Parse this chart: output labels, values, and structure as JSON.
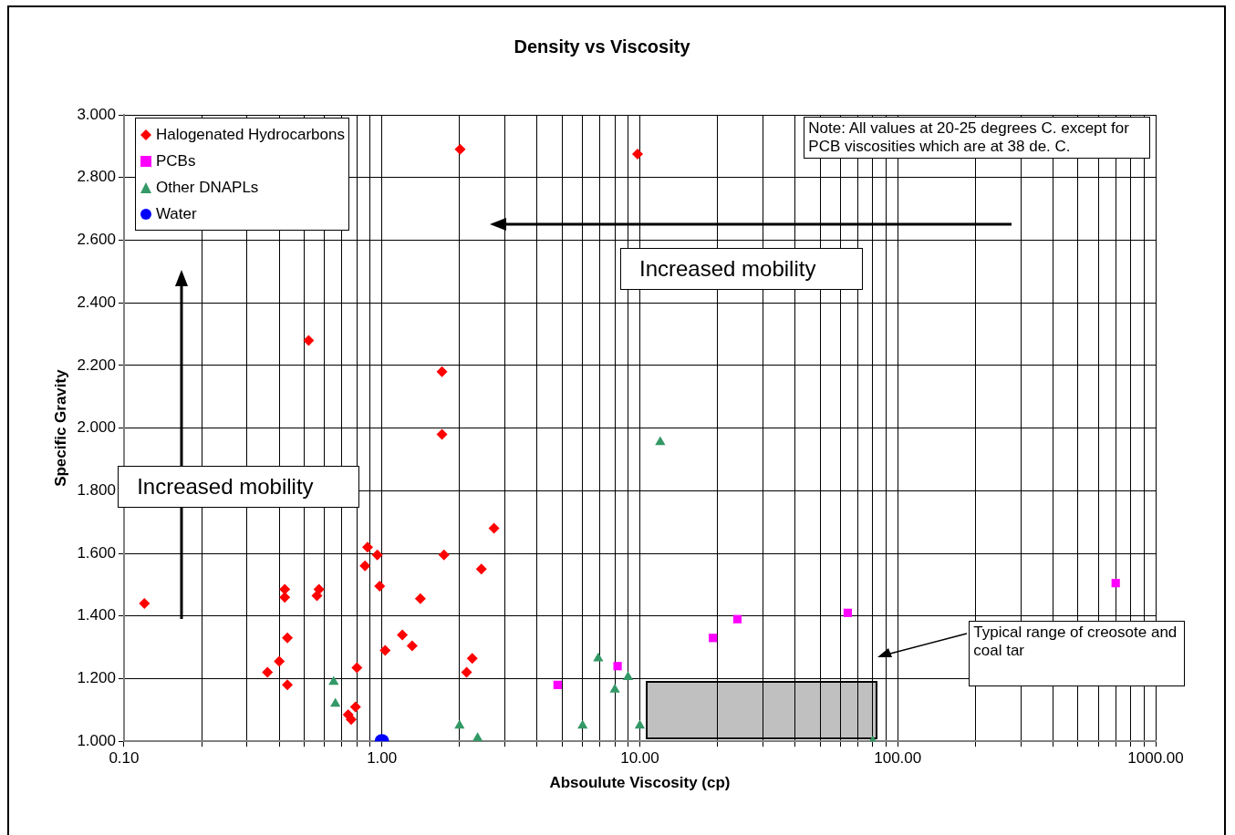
{
  "chart_data": {
    "type": "scatter",
    "title": "Density vs Viscosity",
    "xlabel": "Absoulute Viscosity (cp)",
    "ylabel": "Specific Gravity",
    "log": "x",
    "grid": true,
    "legend": "top left",
    "xlim": [
      0.1,
      1000
    ],
    "ylim": [
      1,
      3
    ],
    "xticks": [
      {
        "value": 0.1,
        "label": "0.10"
      },
      {
        "value": 0.2,
        "label": null
      },
      {
        "value": 0.3,
        "label": null
      },
      {
        "value": 0.4,
        "label": null
      },
      {
        "value": 0.5,
        "label": null
      },
      {
        "value": 0.6,
        "label": null
      },
      {
        "value": 0.7,
        "label": null
      },
      {
        "value": 0.8,
        "label": null
      },
      {
        "value": 0.9,
        "label": null
      },
      {
        "value": 1,
        "label": "1.00"
      },
      {
        "value": 2,
        "label": null
      },
      {
        "value": 3,
        "label": null
      },
      {
        "value": 4,
        "label": null
      },
      {
        "value": 5,
        "label": null
      },
      {
        "value": 6,
        "label": null
      },
      {
        "value": 7,
        "label": null
      },
      {
        "value": 8,
        "label": null
      },
      {
        "value": 9,
        "label": null
      },
      {
        "value": 10,
        "label": "10.00"
      },
      {
        "value": 20,
        "label": null
      },
      {
        "value": 30,
        "label": null
      },
      {
        "value": 40,
        "label": null
      },
      {
        "value": 50,
        "label": null
      },
      {
        "value": 60,
        "label": null
      },
      {
        "value": 70,
        "label": null
      },
      {
        "value": 80,
        "label": null
      },
      {
        "value": 90,
        "label": null
      },
      {
        "value": 100,
        "label": "100.00"
      },
      {
        "value": 200,
        "label": null
      },
      {
        "value": 300,
        "label": null
      },
      {
        "value": 400,
        "label": null
      },
      {
        "value": 500,
        "label": null
      },
      {
        "value": 600,
        "label": null
      },
      {
        "value": 700,
        "label": null
      },
      {
        "value": 800,
        "label": null
      },
      {
        "value": 900,
        "label": null
      },
      {
        "value": 1000,
        "label": "1000.00"
      }
    ],
    "yticks": [
      {
        "value": 1,
        "label": "1.000"
      },
      {
        "value": 1.2,
        "label": "1.200"
      },
      {
        "value": 1.4,
        "label": "1.400"
      },
      {
        "value": 1.6,
        "label": "1.600"
      },
      {
        "value": 1.8,
        "label": "1.800"
      },
      {
        "value": 2,
        "label": "2.000"
      },
      {
        "value": 2.2,
        "label": "2.200"
      },
      {
        "value": 2.4,
        "label": "2.400"
      },
      {
        "value": 2.6,
        "label": "2.600"
      },
      {
        "value": 2.8,
        "label": "2.800"
      },
      {
        "value": 3,
        "label": "3.000"
      }
    ],
    "series": [
      {
        "name": "Halogenated Hydrocarbons",
        "color": "#ff0000",
        "marker": "diamond",
        "x": [
          0.12,
          0.52,
          2.01,
          9.8,
          1.71,
          1.71,
          2.72,
          0.88,
          0.96,
          1.74,
          0.86,
          2.43,
          0.98,
          1.41,
          0.42,
          0.42,
          0.57,
          0.56,
          0.43,
          1.2,
          1.31,
          1.03,
          0.4,
          0.36,
          0.8,
          2.24,
          2.13,
          0.43,
          0.79,
          0.74,
          0.76
        ],
        "values": [
          1.44,
          2.28,
          2.89,
          2.875,
          2.18,
          1.98,
          1.68,
          1.62,
          1.595,
          1.595,
          1.56,
          1.55,
          1.495,
          1.455,
          1.485,
          1.46,
          1.485,
          1.465,
          1.33,
          1.34,
          1.305,
          1.29,
          1.255,
          1.22,
          1.235,
          1.265,
          1.22,
          1.18,
          1.11,
          1.085,
          1.07
        ]
      },
      {
        "name": "PCBs",
        "color": "#ff00ff",
        "marker": "square",
        "x": [
          4.8,
          8.2,
          19.2,
          23.9,
          64,
          700
        ],
        "values": [
          1.18,
          1.24,
          1.33,
          1.39,
          1.41,
          1.505
        ]
      },
      {
        "name": "Other DNAPLs",
        "color": "#339966",
        "marker": "triangle",
        "x": [
          0.65,
          0.66,
          12,
          6.9,
          8,
          9,
          6,
          2,
          2.35,
          10,
          80
        ],
        "values": [
          1.19,
          1.12,
          1.955,
          1.265,
          1.165,
          1.205,
          1.05,
          1.05,
          1.01,
          1.05,
          1.0
        ]
      },
      {
        "name": "Water",
        "color": "#0000ff",
        "marker": "circle",
        "x": [
          1
        ],
        "values": [
          1
        ]
      }
    ],
    "annotations": [
      "Note:  All values at 20-25 degrees C. except for PCB viscosities which are at 38 de. C.",
      "Increased mobility",
      "Increased mobility",
      "Typical range of creosote and coal tar"
    ]
  }
}
